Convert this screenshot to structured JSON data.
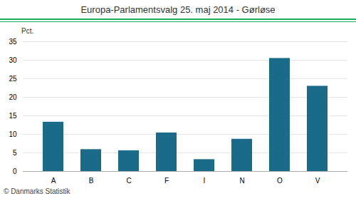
{
  "chart_data": {
    "type": "bar",
    "title": "Europa-Parlamentsvalg 25. maj 2014 - Gørløse",
    "categories": [
      "A",
      "B",
      "C",
      "F",
      "I",
      "N",
      "O",
      "V"
    ],
    "values": [
      13.3,
      5.9,
      5.6,
      10.4,
      3.2,
      8.7,
      30.5,
      23.0
    ],
    "color": "#1a6b8a",
    "ylabel": "Pct.",
    "ylim": [
      0,
      35
    ],
    "yticks": [
      0,
      5,
      10,
      15,
      20,
      25,
      30,
      35
    ],
    "grid": true,
    "caption": "© Danmarks Statistik"
  }
}
